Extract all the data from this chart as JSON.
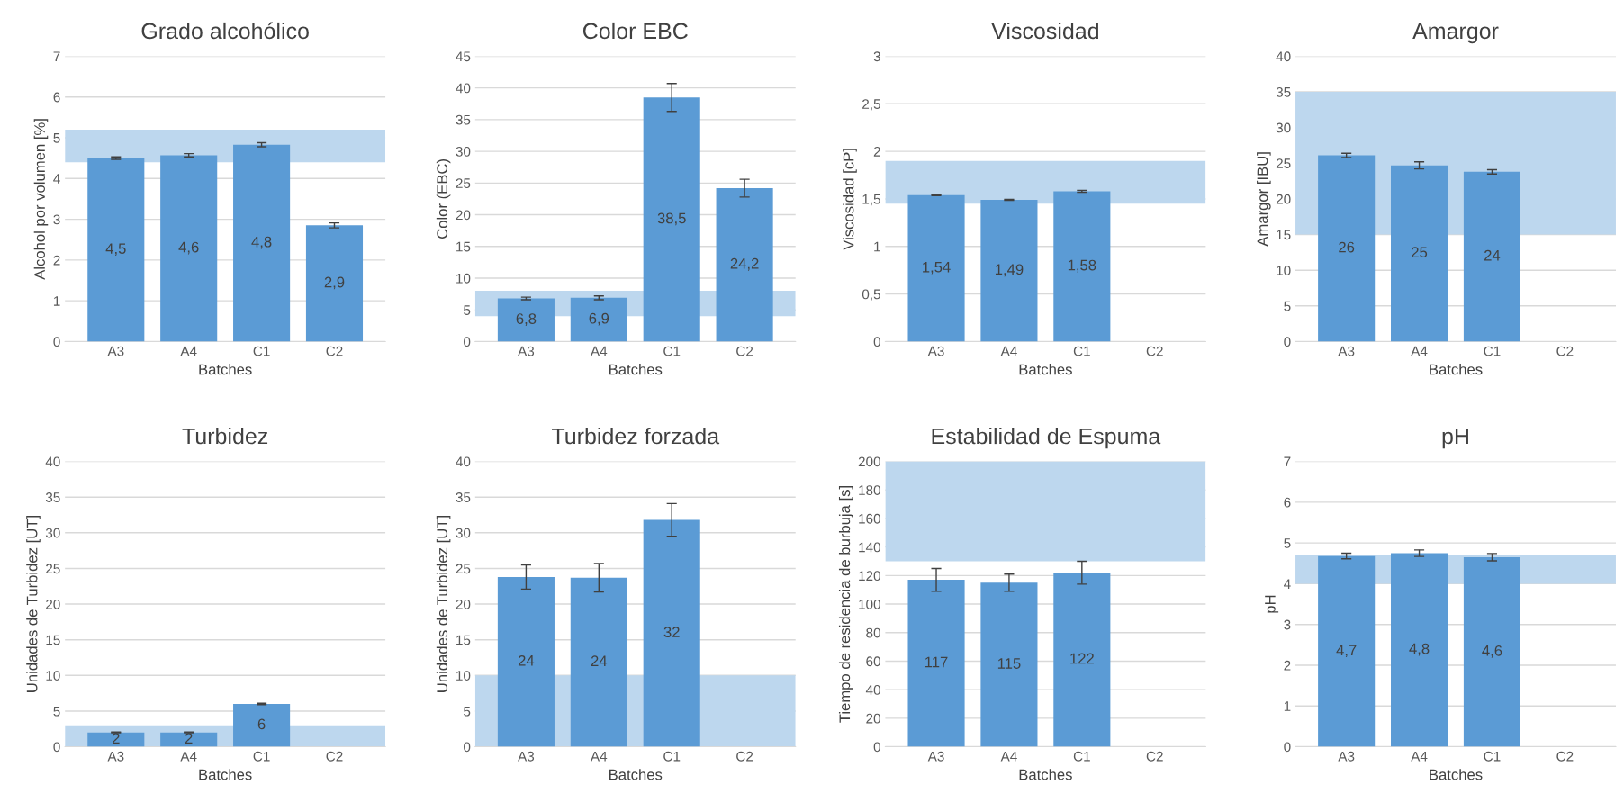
{
  "chart_data": [
    {
      "type": "bar",
      "title": "Grado alcohólico",
      "xlabel": "Batches",
      "ylabel": "Alcohol por volumen [%]",
      "categories": [
        "A3",
        "A4",
        "C1",
        "C2"
      ],
      "values": [
        4.5,
        4.57,
        4.83,
        2.85
      ],
      "errors": [
        0.03,
        0.04,
        0.05,
        0.06
      ],
      "value_labels": [
        "4,5",
        "4,6",
        "4,8",
        "2,9"
      ],
      "color": "#5b9bd5",
      "ylim": [
        0,
        7
      ],
      "yticks": [
        0,
        1,
        2,
        3,
        4,
        5,
        6,
        7
      ],
      "grid": "y",
      "bands": [
        {
          "axis": "y",
          "from": 4.4,
          "to": 5.2,
          "color": "#bdd7ee"
        }
      ]
    },
    {
      "type": "bar",
      "title": "Color EBC",
      "xlabel": "Batches",
      "ylabel": "Color (EBC)",
      "categories": [
        "A3",
        "A4",
        "C1",
        "C2"
      ],
      "values": [
        6.8,
        6.9,
        38.5,
        24.2
      ],
      "errors": [
        0.2,
        0.3,
        2.2,
        1.4
      ],
      "value_labels": [
        "6,8",
        "6,9",
        "38,5",
        "24,2"
      ],
      "color": "#5b9bd5",
      "ylim": [
        0,
        45
      ],
      "yticks": [
        0,
        5,
        10,
        15,
        20,
        25,
        30,
        35,
        40,
        45
      ],
      "grid": "y",
      "bands": [
        {
          "axis": "y",
          "from": 4,
          "to": 8,
          "color": "#bdd7ee"
        }
      ]
    },
    {
      "type": "bar",
      "title": "Viscosidad",
      "xlabel": "Batches",
      "ylabel": "Viscosidad [cP]",
      "categories": [
        "A3",
        "A4",
        "C1",
        "C2"
      ],
      "values": [
        1.54,
        1.49,
        1.58,
        null
      ],
      "errors": [
        0.005,
        0.005,
        0.01,
        null
      ],
      "value_labels": [
        "1,54",
        "1,49",
        "1,58",
        null
      ],
      "color": "#5b9bd5",
      "ylim": [
        0,
        3
      ],
      "yticks": [
        0,
        {
          "value": 0.5,
          "label": "0,5"
        },
        1,
        {
          "value": 1.5,
          "label": "1,5"
        },
        2,
        {
          "value": 2.5,
          "label": "2,5"
        },
        3
      ],
      "grid": "y",
      "bands": [
        {
          "axis": "y",
          "from": 1.45,
          "to": 1.9,
          "color": "#bdd7ee"
        }
      ]
    },
    {
      "type": "bar",
      "title": "Amargor",
      "xlabel": "Batches",
      "ylabel": "Amargor [IBU]",
      "categories": [
        "A3",
        "A4",
        "C1",
        "C2"
      ],
      "values": [
        26.1,
        24.7,
        23.8,
        null
      ],
      "errors": [
        0.3,
        0.5,
        0.3,
        null
      ],
      "value_labels": [
        "26",
        "25",
        "24",
        null
      ],
      "color": "#5b9bd5",
      "ylim": [
        0,
        40
      ],
      "yticks": [
        0,
        5,
        10,
        15,
        20,
        25,
        30,
        35,
        40
      ],
      "grid": "y",
      "bands": [
        {
          "axis": "y",
          "from": 15,
          "to": 35,
          "color": "#bdd7ee"
        }
      ]
    },
    {
      "type": "bar",
      "title": "Turbidez",
      "xlabel": "Batches",
      "ylabel": "Unidades de Turbidez [UT]",
      "categories": [
        "A3",
        "A4",
        "C1",
        "C2"
      ],
      "values": [
        2,
        2,
        6,
        null
      ],
      "errors": [
        0.05,
        0.05,
        0.1,
        null
      ],
      "value_labels": [
        "2",
        "2",
        "6",
        null
      ],
      "color": "#5b9bd5",
      "ylim": [
        0,
        40
      ],
      "yticks": [
        0,
        5,
        10,
        15,
        20,
        25,
        30,
        35,
        40
      ],
      "grid": "y",
      "bands": [
        {
          "axis": "y",
          "from": 0,
          "to": 3,
          "color": "#bdd7ee"
        }
      ]
    },
    {
      "type": "bar",
      "title": "Turbidez forzada",
      "xlabel": "Batches",
      "ylabel": "Unidades de Turbidez [UT]",
      "categories": [
        "A3",
        "A4",
        "C1",
        "C2"
      ],
      "values": [
        23.8,
        23.7,
        31.8,
        null
      ],
      "errors": [
        1.7,
        2,
        2.3,
        null
      ],
      "value_labels": [
        "24",
        "24",
        "32",
        null
      ],
      "color": "#5b9bd5",
      "ylim": [
        0,
        40
      ],
      "yticks": [
        0,
        5,
        10,
        15,
        20,
        25,
        30,
        35,
        40
      ],
      "grid": "y",
      "bands": [
        {
          "axis": "y",
          "from": 0,
          "to": 10,
          "color": "#bdd7ee"
        }
      ]
    },
    {
      "type": "bar",
      "title": "Estabilidad de Espuma",
      "xlabel": "Batches",
      "ylabel": "Tiempo de residencia de burbuja [s]",
      "categories": [
        "A3",
        "A4",
        "C1",
        "C2"
      ],
      "values": [
        117,
        115,
        122,
        null
      ],
      "errors": [
        8,
        6,
        8,
        null
      ],
      "value_labels": [
        "117",
        "115",
        "122",
        null
      ],
      "color": "#5b9bd5",
      "ylim": [
        0,
        200
      ],
      "yticks": [
        0,
        20,
        40,
        60,
        80,
        100,
        120,
        140,
        160,
        180,
        200
      ],
      "grid": "y",
      "bands": [
        {
          "axis": "y",
          "from": 130,
          "to": 200,
          "color": "#bdd7ee"
        }
      ]
    },
    {
      "type": "bar",
      "title": "pH",
      "xlabel": "Batches",
      "ylabel": "pH",
      "categories": [
        "A3",
        "A4",
        "C1",
        "C2"
      ],
      "values": [
        4.68,
        4.75,
        4.65,
        null
      ],
      "errors": [
        0.07,
        0.08,
        0.09,
        null
      ],
      "value_labels": [
        "4,7",
        "4,8",
        "4,6",
        null
      ],
      "color": "#5b9bd5",
      "ylim": [
        0,
        7
      ],
      "yticks": [
        0,
        1,
        2,
        3,
        4,
        5,
        6,
        7
      ],
      "grid": "y",
      "bands": [
        {
          "axis": "y",
          "from": 4,
          "to": 4.7,
          "color": "#bdd7ee"
        }
      ]
    }
  ]
}
